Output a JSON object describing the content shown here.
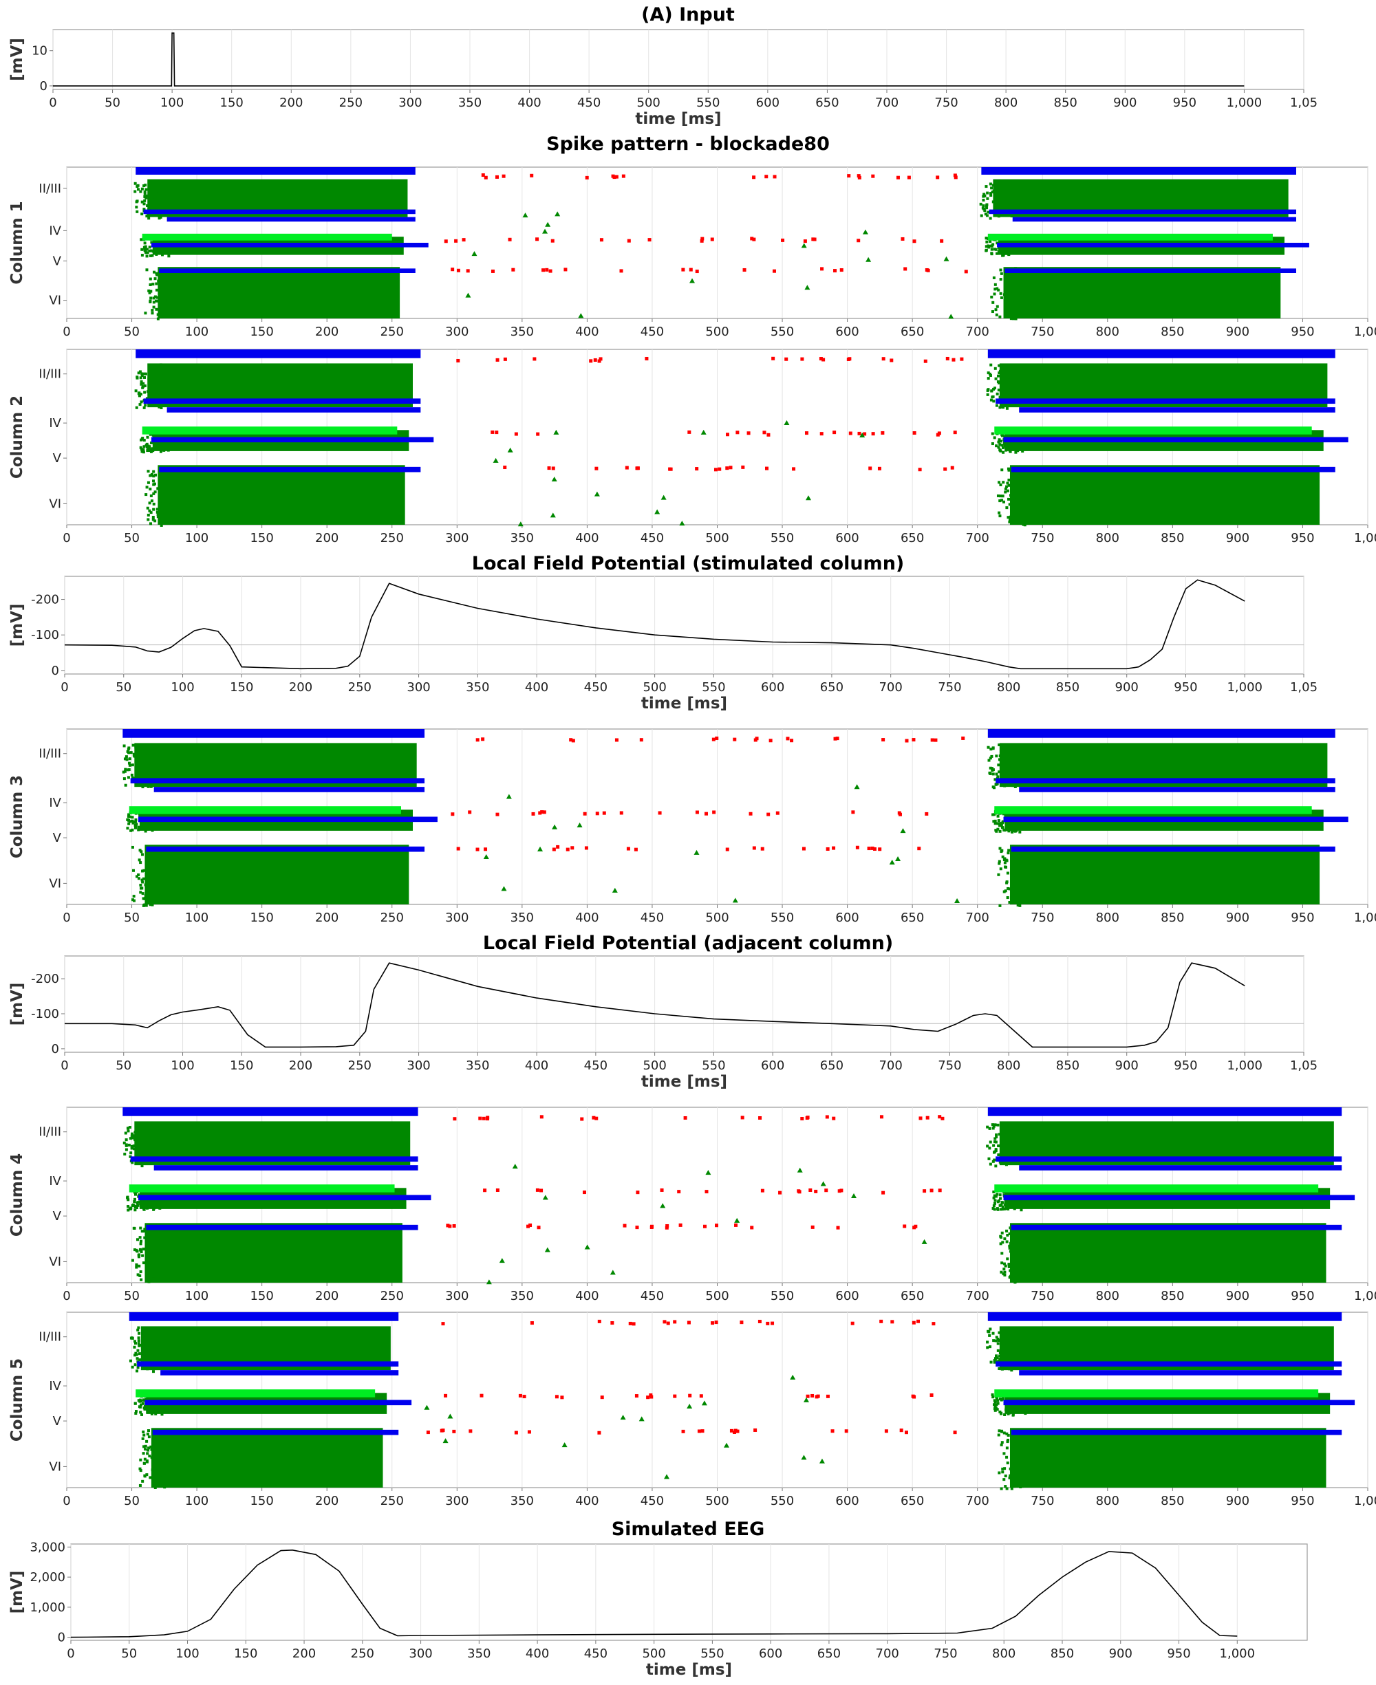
{
  "figure": {
    "title": "Spike pattern - blockade80"
  },
  "colors": {
    "inhibitory": "#0000ee",
    "excitatory": "#008800",
    "input_layer": "#00ee22",
    "other": "#ff0000",
    "trace": "#000000",
    "grid": "#e4e4e4"
  },
  "chart_data": [
    {
      "id": "input",
      "type": "line",
      "title": "(A) Input",
      "xlabel": "time [ms]",
      "ylabel": "[mV]",
      "xlim": [
        0,
        1050
      ],
      "ylim": [
        -1,
        16
      ],
      "xticks": [
        "0",
        "50",
        "100",
        "150",
        "200",
        "250",
        "300",
        "350",
        "400",
        "450",
        "500",
        "550",
        "600",
        "650",
        "700",
        "750",
        "800",
        "850",
        "900",
        "950",
        "1,000",
        "1,05"
      ],
      "yticks": [
        "0",
        "10"
      ],
      "x": [
        0,
        99.5,
        100,
        101.5,
        102,
        1000
      ],
      "y": [
        0,
        0,
        15,
        15,
        0,
        0
      ]
    },
    {
      "id": "col1",
      "type": "scatter",
      "title": "",
      "ylabel": "Column 1",
      "xlim": [
        0,
        1000
      ],
      "xticks": [
        "0",
        "50",
        "100",
        "150",
        "200",
        "250",
        "300",
        "350",
        "400",
        "450",
        "500",
        "550",
        "600",
        "650",
        "700",
        "750",
        "800",
        "850",
        "900",
        "950",
        "1,00"
      ],
      "layers": [
        "II/III",
        "IV",
        "V",
        "VI"
      ],
      "epochs": [
        [
          50,
          268
        ],
        [
          700,
          945
        ]
      ]
    },
    {
      "id": "col2",
      "type": "scatter",
      "title": "",
      "ylabel": "Column 2",
      "xlim": [
        0,
        1000
      ],
      "xticks": [
        "0",
        "50",
        "100",
        "150",
        "200",
        "250",
        "300",
        "350",
        "400",
        "450",
        "500",
        "550",
        "600",
        "650",
        "700",
        "750",
        "800",
        "850",
        "900",
        "950",
        "1,00"
      ],
      "layers": [
        "II/III",
        "IV",
        "V",
        "VI"
      ],
      "epochs": [
        [
          50,
          272
        ],
        [
          705,
          975
        ]
      ]
    },
    {
      "id": "lfp1",
      "type": "line",
      "title": "Local Field Potential (stimulated column)",
      "xlabel": "time [ms]",
      "ylabel": "[mV]",
      "xlim": [
        0,
        1050
      ],
      "ylim": [
        10,
        -265
      ],
      "yticks": [
        "0",
        "-100",
        "-200"
      ],
      "xticks": [
        "0",
        "50",
        "100",
        "150",
        "200",
        "250",
        "300",
        "350",
        "400",
        "450",
        "500",
        "550",
        "600",
        "650",
        "700",
        "750",
        "800",
        "850",
        "900",
        "950",
        "1,000",
        "1,05"
      ],
      "x": [
        0,
        40,
        60,
        70,
        80,
        90,
        100,
        110,
        118,
        130,
        140,
        150,
        200,
        230,
        240,
        250,
        260,
        275,
        300,
        350,
        400,
        450,
        500,
        550,
        600,
        650,
        700,
        720,
        740,
        760,
        780,
        800,
        810,
        900,
        910,
        920,
        930,
        940,
        950,
        960,
        975,
        1000
      ],
      "y": [
        -72,
        -71,
        -66,
        -55,
        -52,
        -65,
        -90,
        -112,
        -118,
        -110,
        -70,
        -10,
        -5,
        -6,
        -12,
        -40,
        -150,
        -245,
        -215,
        -175,
        -145,
        -120,
        -100,
        -88,
        -80,
        -78,
        -72,
        -62,
        -50,
        -38,
        -25,
        -10,
        -5,
        -5,
        -10,
        -30,
        -60,
        -150,
        -230,
        -255,
        -240,
        -195
      ]
    },
    {
      "id": "col3",
      "type": "scatter",
      "title": "",
      "ylabel": "Column 3",
      "xlim": [
        0,
        1000
      ],
      "xticks": [
        "0",
        "50",
        "100",
        "150",
        "200",
        "250",
        "300",
        "350",
        "400",
        "450",
        "500",
        "550",
        "600",
        "650",
        "700",
        "750",
        "800",
        "850",
        "900",
        "950",
        "1,00"
      ],
      "layers": [
        "II/III",
        "IV",
        "V",
        "VI"
      ],
      "epochs": [
        [
          40,
          275
        ],
        [
          705,
          975
        ]
      ]
    },
    {
      "id": "lfp2",
      "type": "line",
      "title": "Local Field Potential (adjacent column)",
      "xlabel": "time [ms]",
      "ylabel": "[mV]",
      "xlim": [
        0,
        1050
      ],
      "ylim": [
        10,
        -265
      ],
      "yticks": [
        "0",
        "-100",
        "-200"
      ],
      "xticks": [
        "0",
        "50",
        "100",
        "150",
        "200",
        "250",
        "300",
        "350",
        "400",
        "450",
        "500",
        "550",
        "600",
        "650",
        "700",
        "750",
        "800",
        "850",
        "900",
        "950",
        "1,000",
        "1,05"
      ],
      "x": [
        0,
        40,
        60,
        70,
        80,
        90,
        100,
        115,
        130,
        140,
        155,
        170,
        200,
        230,
        245,
        255,
        262,
        275,
        300,
        350,
        400,
        450,
        500,
        550,
        600,
        650,
        700,
        720,
        740,
        755,
        770,
        780,
        790,
        805,
        820,
        900,
        915,
        925,
        935,
        945,
        955,
        975,
        1000
      ],
      "y": [
        -72,
        -72,
        -68,
        -60,
        -80,
        -97,
        -105,
        -112,
        -120,
        -110,
        -40,
        -5,
        -5,
        -6,
        -10,
        -50,
        -170,
        -245,
        -225,
        -178,
        -145,
        -120,
        -100,
        -85,
        -78,
        -72,
        -65,
        -55,
        -50,
        -70,
        -95,
        -100,
        -95,
        -50,
        -5,
        -5,
        -10,
        -20,
        -60,
        -190,
        -245,
        -230,
        -180
      ]
    },
    {
      "id": "col4",
      "type": "scatter",
      "title": "",
      "ylabel": "Column 4",
      "xlim": [
        0,
        1000
      ],
      "xticks": [
        "0",
        "50",
        "100",
        "150",
        "200",
        "250",
        "300",
        "350",
        "400",
        "450",
        "500",
        "550",
        "600",
        "650",
        "700",
        "750",
        "800",
        "850",
        "900",
        "950",
        "1,00"
      ],
      "layers": [
        "II/III",
        "IV",
        "V",
        "VI"
      ],
      "epochs": [
        [
          40,
          270
        ],
        [
          705,
          980
        ]
      ]
    },
    {
      "id": "col5",
      "type": "scatter",
      "title": "",
      "ylabel": "Column 5",
      "xlim": [
        0,
        1000
      ],
      "xticks": [
        "0",
        "50",
        "100",
        "150",
        "200",
        "250",
        "300",
        "350",
        "400",
        "450",
        "500",
        "550",
        "600",
        "650",
        "700",
        "750",
        "800",
        "850",
        "900",
        "950",
        "1,00"
      ],
      "layers": [
        "II/III",
        "IV",
        "V",
        "VI"
      ],
      "epochs": [
        [
          45,
          255
        ],
        [
          705,
          980
        ]
      ]
    },
    {
      "id": "eeg",
      "type": "line",
      "title": "Simulated EEG",
      "xlabel": "time [ms]",
      "ylabel": "[mV]",
      "xlim": [
        0,
        1060
      ],
      "ylim": [
        -100,
        3100
      ],
      "yticks": [
        "0",
        "1,000",
        "2,000",
        "3,000"
      ],
      "xticks": [
        "0",
        "50",
        "100",
        "150",
        "200",
        "250",
        "300",
        "350",
        "400",
        "450",
        "500",
        "550",
        "600",
        "650",
        "700",
        "750",
        "800",
        "850",
        "900",
        "950",
        "1,000"
      ],
      "x": [
        0,
        50,
        80,
        100,
        120,
        140,
        160,
        180,
        190,
        210,
        230,
        250,
        265,
        280,
        300,
        400,
        500,
        600,
        700,
        760,
        790,
        810,
        830,
        850,
        870,
        890,
        910,
        930,
        950,
        970,
        985,
        1000
      ],
      "y": [
        0,
        20,
        80,
        200,
        600,
        1600,
        2400,
        2880,
        2900,
        2750,
        2200,
        1100,
        300,
        50,
        60,
        80,
        100,
        110,
        120,
        140,
        300,
        700,
        1400,
        2000,
        2500,
        2850,
        2800,
        2300,
        1400,
        500,
        60,
        40
      ]
    }
  ]
}
